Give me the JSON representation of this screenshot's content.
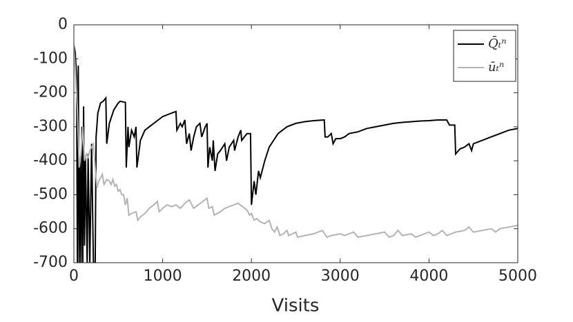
{
  "chart_data": {
    "type": "line",
    "xlabel": "Visits",
    "xlim": [
      0,
      5000
    ],
    "xticks": [
      0,
      1000,
      2000,
      3000,
      4000,
      5000
    ],
    "ylim": [
      -700,
      0
    ],
    "yticks": [
      0,
      -100,
      -200,
      -300,
      -400,
      -500,
      -600,
      -700
    ],
    "legend": "upper right",
    "series": [
      {
        "name": "Q̄ₜⁿ",
        "color": "#000000",
        "x": [
          0,
          15,
          30,
          40,
          50,
          60,
          70,
          80,
          90,
          100,
          110,
          120,
          130,
          150,
          160,
          180,
          200,
          220,
          240,
          250,
          270,
          300,
          330,
          360,
          370,
          400,
          450,
          500,
          520,
          580,
          590,
          610,
          620,
          650,
          680,
          700,
          710,
          750,
          800,
          900,
          950,
          1000,
          1100,
          1150,
          1160,
          1200,
          1220,
          1250,
          1270,
          1300,
          1320,
          1350,
          1380,
          1420,
          1440,
          1480,
          1500,
          1510,
          1530,
          1560,
          1570,
          1590,
          1620,
          1650,
          1700,
          1720,
          1750,
          1800,
          1810,
          1850,
          1880,
          1890,
          1920,
          1950,
          1990,
          2000,
          2030,
          2050,
          2080,
          2100,
          2150,
          2200,
          2300,
          2400,
          2500,
          2600,
          2700,
          2820,
          2830,
          2860,
          2900,
          2920,
          2950,
          3000,
          3050,
          3100,
          3200,
          3300,
          3400,
          3500,
          3600,
          3700,
          3800,
          3900,
          4000,
          4100,
          4200,
          4230,
          4290,
          4300,
          4350,
          4400,
          4450,
          4480,
          4500,
          4600,
          4700,
          4800,
          4900,
          5000
        ],
        "values": [
          -60,
          -80,
          -150,
          -700,
          -120,
          -700,
          -400,
          -700,
          -300,
          -700,
          -240,
          -650,
          -390,
          -700,
          -380,
          -700,
          -350,
          -700,
          -700,
          -330,
          -260,
          -230,
          -225,
          -215,
          -350,
          -290,
          -250,
          -230,
          -225,
          -228,
          -420,
          -300,
          -360,
          -310,
          -330,
          -300,
          -420,
          -340,
          -310,
          -290,
          -280,
          -270,
          -260,
          -255,
          -310,
          -290,
          -300,
          -280,
          -350,
          -320,
          -370,
          -330,
          -300,
          -290,
          -330,
          -300,
          -290,
          -420,
          -360,
          -400,
          -340,
          -430,
          -380,
          -370,
          -350,
          -400,
          -360,
          -340,
          -370,
          -330,
          -310,
          -340,
          -330,
          -320,
          -320,
          -530,
          -460,
          -500,
          -430,
          -450,
          -400,
          -360,
          -320,
          -300,
          -290,
          -285,
          -282,
          -280,
          -330,
          -330,
          -320,
          -350,
          -335,
          -335,
          -330,
          -320,
          -315,
          -305,
          -300,
          -295,
          -290,
          -287,
          -285,
          -283,
          -282,
          -280,
          -280,
          -295,
          -295,
          -380,
          -365,
          -360,
          -350,
          -370,
          -350,
          -340,
          -330,
          -320,
          -310,
          -305
        ]
      },
      {
        "name": "ūₜⁿ",
        "color": "#b3b3b3",
        "x": [
          0,
          20,
          40,
          60,
          80,
          100,
          120,
          140,
          160,
          180,
          200,
          220,
          240,
          260,
          280,
          300,
          320,
          340,
          370,
          400,
          420,
          440,
          460,
          480,
          500,
          520,
          540,
          560,
          580,
          600,
          620,
          650,
          700,
          720,
          750,
          800,
          850,
          900,
          940,
          960,
          1000,
          1050,
          1100,
          1150,
          1200,
          1250,
          1300,
          1350,
          1400,
          1450,
          1500,
          1520,
          1560,
          1580,
          1650,
          1700,
          1750,
          1800,
          1850,
          1900,
          1950,
          1980,
          2000,
          2030,
          2060,
          2100,
          2150,
          2200,
          2230,
          2260,
          2290,
          2320,
          2360,
          2400,
          2420,
          2500,
          2520,
          2600,
          2700,
          2800,
          2850,
          2900,
          3000,
          3050,
          3150,
          3200,
          3300,
          3400,
          3500,
          3550,
          3600,
          3650,
          3700,
          3800,
          3850,
          3900,
          4000,
          4050,
          4100,
          4150,
          4200,
          4300,
          4400,
          4450,
          4500,
          4600,
          4700,
          4750,
          4800,
          4900,
          5000
        ],
        "values": [
          -60,
          -150,
          -250,
          -420,
          -380,
          -300,
          -400,
          -380,
          -390,
          -370,
          -360,
          -350,
          -420,
          -480,
          -460,
          -450,
          -440,
          -470,
          -455,
          -460,
          -470,
          -455,
          -475,
          -470,
          -490,
          -485,
          -500,
          -500,
          -530,
          -510,
          -560,
          -555,
          -550,
          -575,
          -565,
          -555,
          -540,
          -530,
          -520,
          -550,
          -540,
          -530,
          -535,
          -530,
          -540,
          -525,
          -515,
          -540,
          -530,
          -520,
          -510,
          -540,
          -535,
          -560,
          -550,
          -540,
          -535,
          -530,
          -525,
          -535,
          -545,
          -560,
          -555,
          -575,
          -570,
          -580,
          -585,
          -575,
          -600,
          -610,
          -595,
          -620,
          -615,
          -605,
          -620,
          -610,
          -625,
          -620,
          -615,
          -605,
          -625,
          -620,
          -615,
          -620,
          -610,
          -625,
          -620,
          -615,
          -610,
          -625,
          -620,
          -605,
          -620,
          -615,
          -625,
          -620,
          -610,
          -620,
          -615,
          -605,
          -620,
          -610,
          -605,
          -595,
          -610,
          -605,
          -600,
          -610,
          -600,
          -595,
          -590
        ]
      }
    ]
  }
}
